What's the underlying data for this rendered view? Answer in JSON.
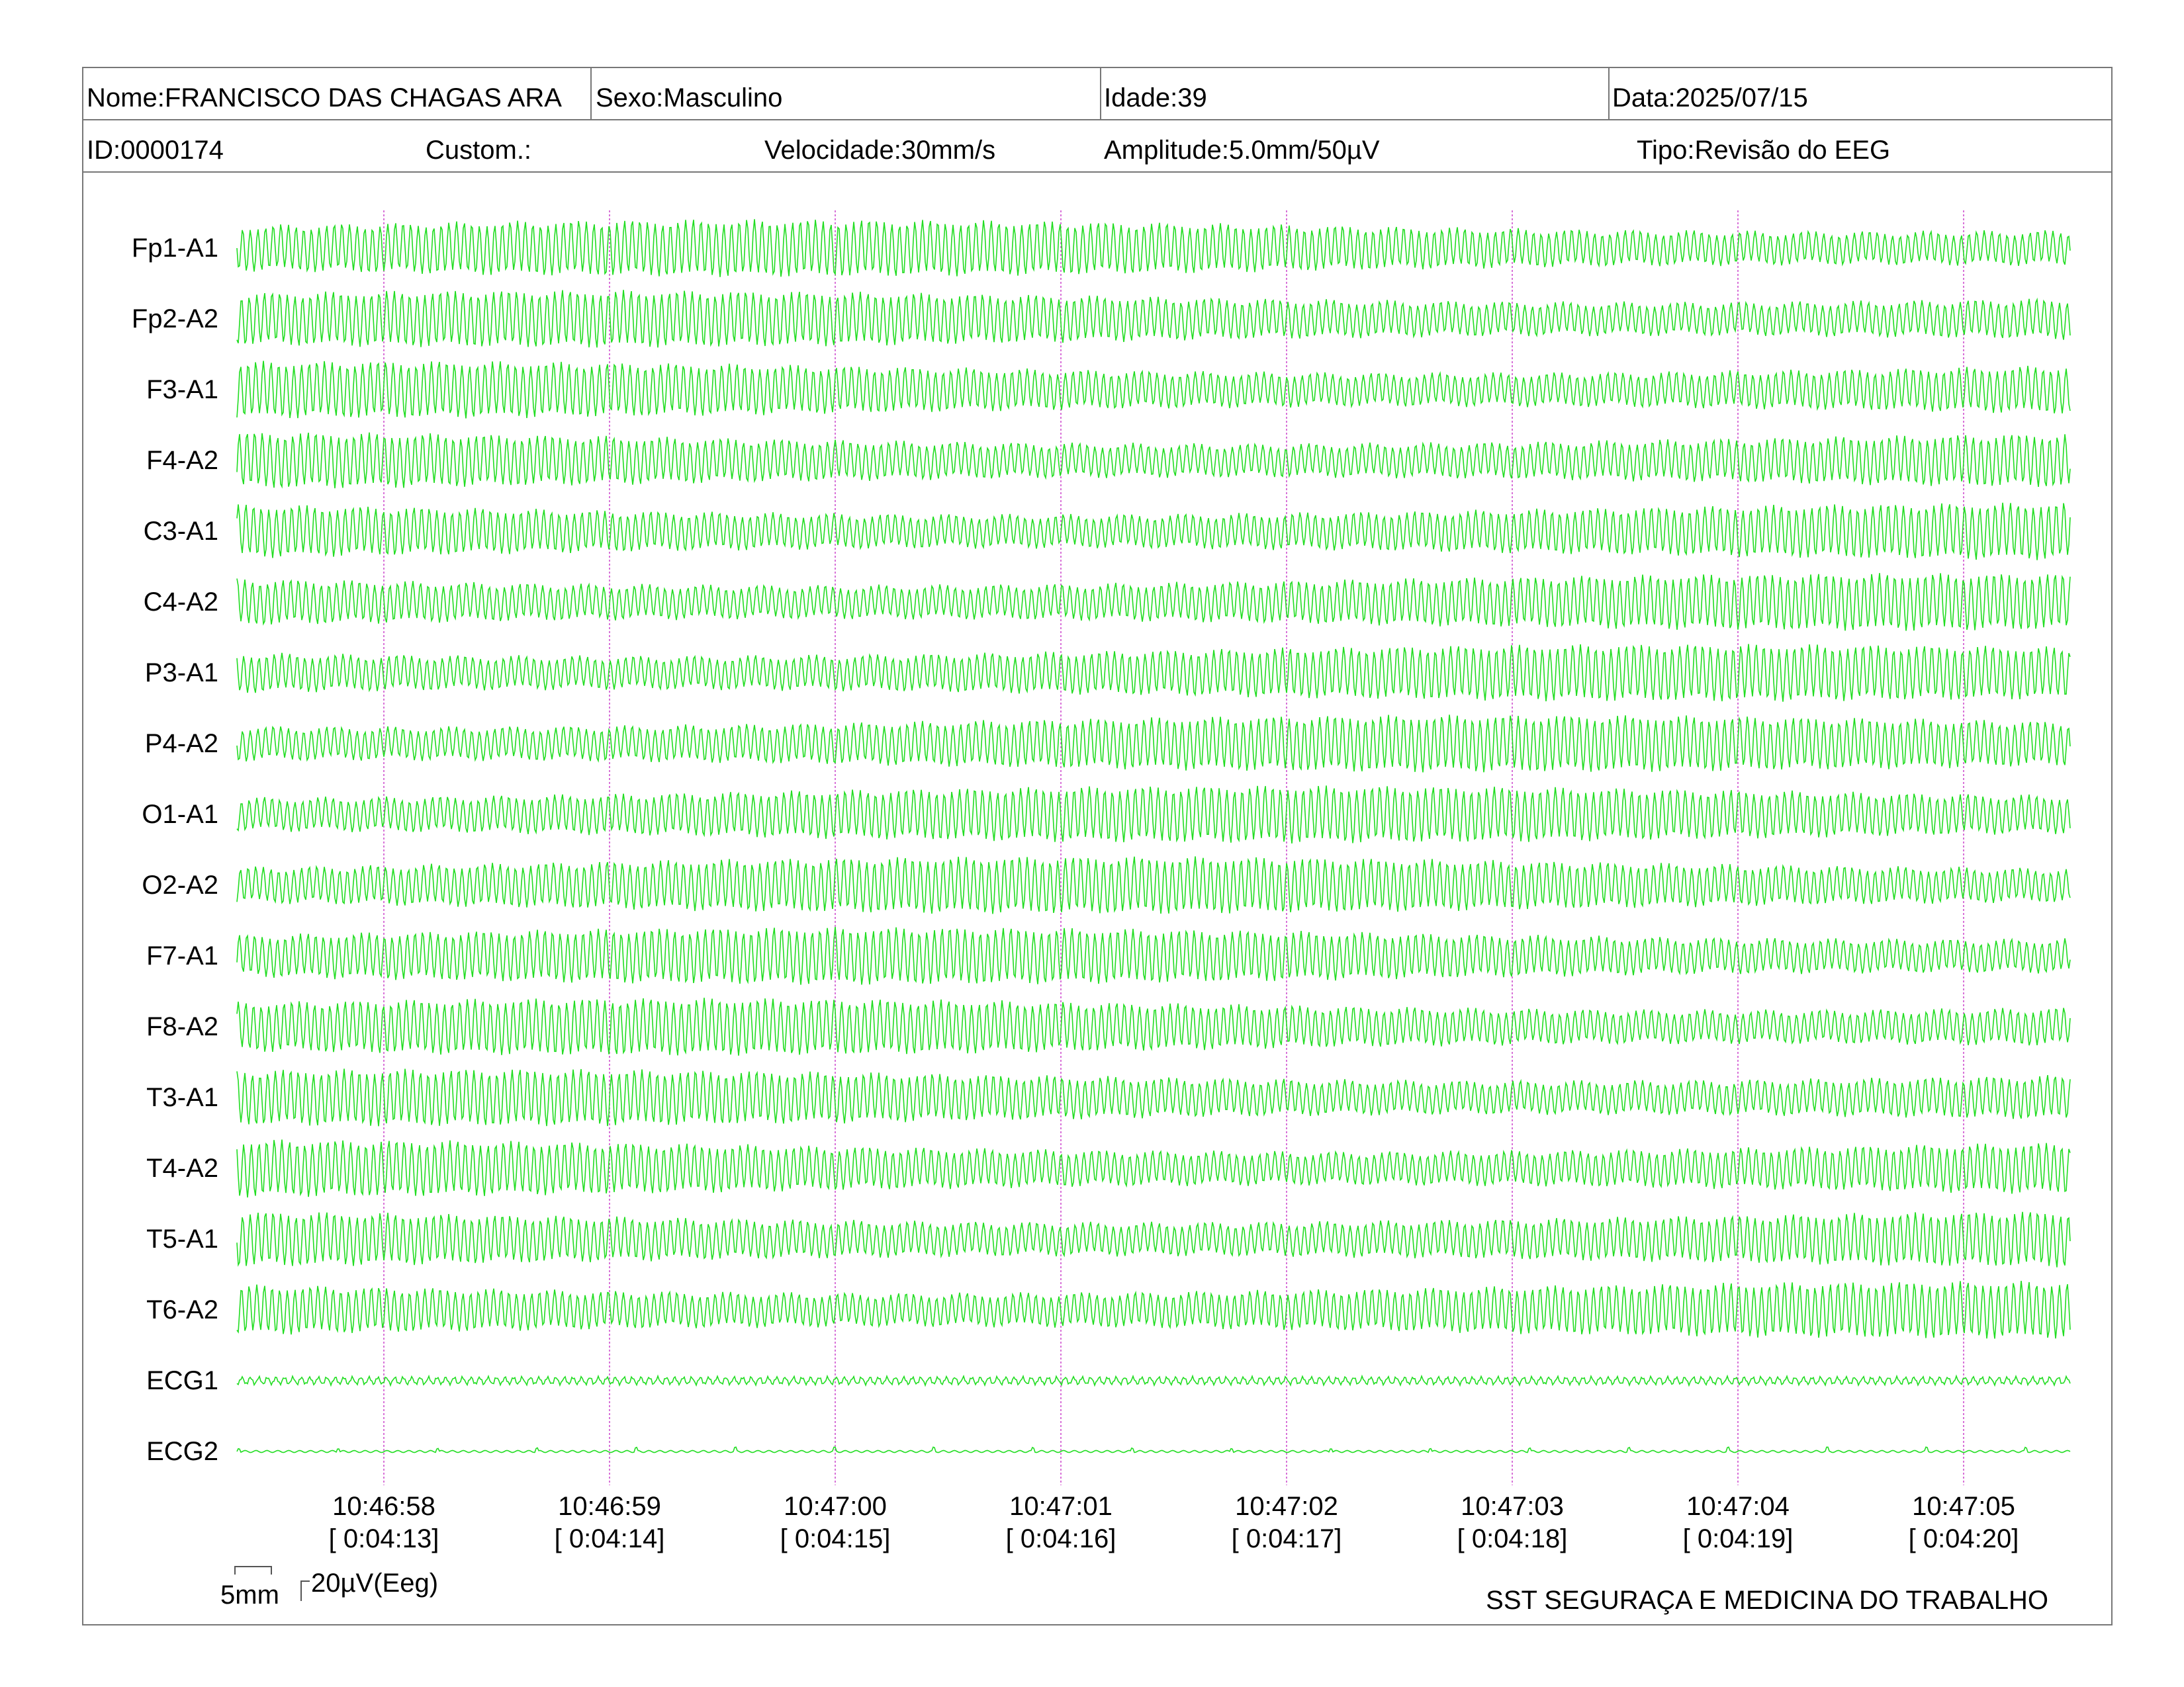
{
  "header": {
    "nome": "Nome:FRANCISCO DAS CHAGAS ARA",
    "sexo": "Sexo:Masculino",
    "idade": "Idade:39",
    "data": "Data:2025/07/15",
    "id": "ID:0000174",
    "custom": "Custom.:",
    "velocidade": "Velocidade:30mm/s",
    "amplitude": "Amplitude:5.0mm/50µV",
    "tipo": "Tipo:Revisão do EEG"
  },
  "channels": [
    "Fp1-A1",
    "Fp2-A2",
    "F3-A1",
    "F4-A2",
    "C3-A1",
    "C4-A2",
    "P3-A1",
    "P4-A2",
    "O1-A1",
    "O2-A2",
    "F7-A1",
    "F8-A2",
    "T3-A1",
    "T4-A2",
    "T5-A1",
    "T6-A2",
    "ECG1",
    "ECG2"
  ],
  "time_ticks": [
    {
      "time": "10:46:58",
      "elapsed": "[ 0:04:13]"
    },
    {
      "time": "10:46:59",
      "elapsed": "[ 0:04:14]"
    },
    {
      "time": "10:47:00",
      "elapsed": "[ 0:04:15]"
    },
    {
      "time": "10:47:01",
      "elapsed": "[ 0:04:16]"
    },
    {
      "time": "10:47:02",
      "elapsed": "[ 0:04:17]"
    },
    {
      "time": "10:47:03",
      "elapsed": "[ 0:04:18]"
    },
    {
      "time": "10:47:04",
      "elapsed": "[ 0:04:19]"
    },
    {
      "time": "10:47:05",
      "elapsed": "[ 0:04:20]"
    }
  ],
  "scale": {
    "time_label": "5mm",
    "amp_label": "20µV(Eeg)"
  },
  "footer": "SST SEGURAÇA E MEDICINA DO TRABALHO",
  "colors": {
    "trace": "#22dd22",
    "marker": "#cc44cc",
    "border": "#777777"
  }
}
